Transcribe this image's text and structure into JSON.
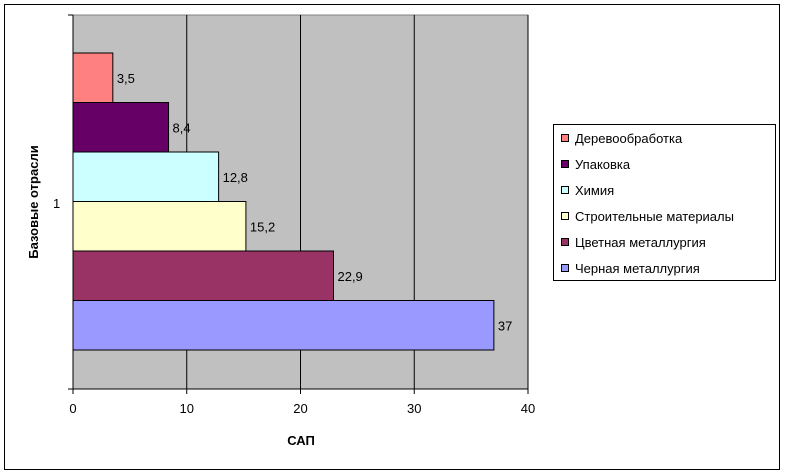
{
  "chart_data": {
    "type": "bar",
    "orientation": "horizontal",
    "categories": [
      "1"
    ],
    "xlabel": "САП",
    "ylabel": "Базовые отрасли",
    "xlim": [
      0,
      40
    ],
    "xticks": [
      0,
      10,
      20,
      30,
      40
    ],
    "grid": true,
    "legend_position": "right",
    "series": [
      {
        "name": "Деревообработка",
        "value": 3.5,
        "label": "3,5",
        "color": "#ff8080"
      },
      {
        "name": "Упаковка",
        "value": 8.4,
        "label": "8,4",
        "color": "#660066"
      },
      {
        "name": "Химия",
        "value": 12.8,
        "label": "12,8",
        "color": "#ccffff"
      },
      {
        "name": "Строительные материалы",
        "value": 15.2,
        "label": "15,2",
        "color": "#ffffcc"
      },
      {
        "name": "Цветная металлургия",
        "value": 22.9,
        "label": "22,9",
        "color": "#993366"
      },
      {
        "name": "Черная металлургия",
        "value": 37,
        "label": "37",
        "color": "#9999ff"
      }
    ],
    "plot_background": "#c0c0c0"
  }
}
